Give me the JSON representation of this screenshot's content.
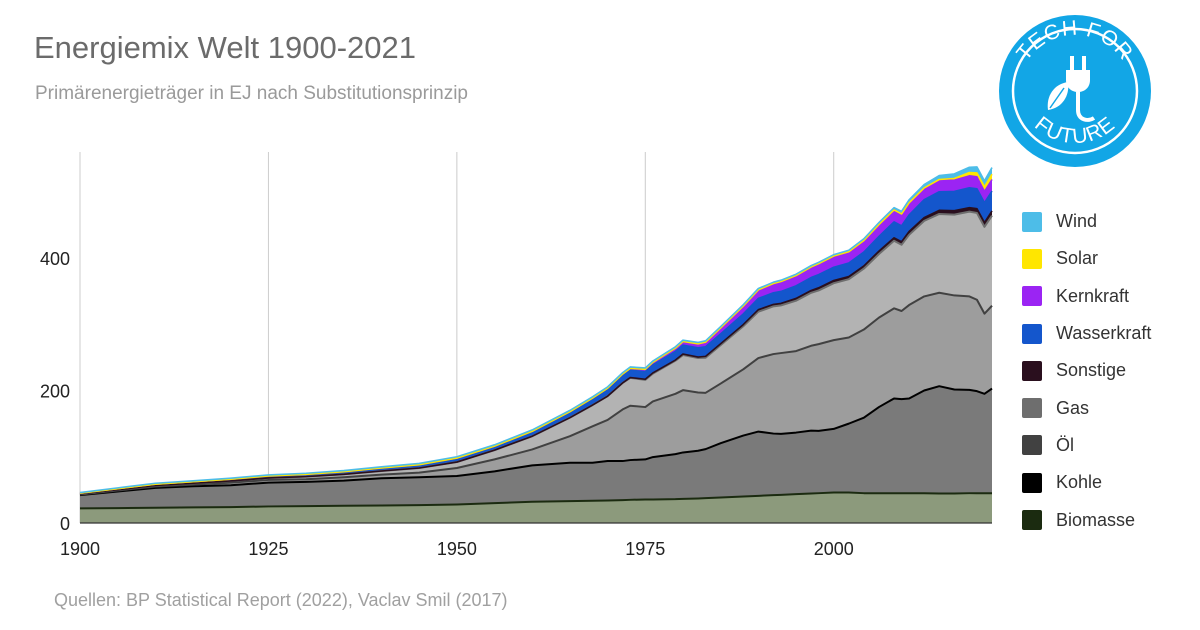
{
  "title": "Energiemix Welt 1900-2021",
  "subtitle": "Primärenergieträger in EJ nach Substitutionsprinzip",
  "source": "Quellen: BP Statistical Report (2022), Vaclav Smil (2017)",
  "logo": {
    "top_text": "TECH FOR",
    "bottom_text": "FUTURE",
    "icon": "plug-leaf-icon",
    "color": "#12a6e6"
  },
  "chart_data": {
    "type": "area",
    "stacked": true,
    "xlim": [
      1900,
      2021
    ],
    "ylim": [
      0,
      560
    ],
    "x_ticks": [
      1900,
      1925,
      1950,
      1975,
      2000
    ],
    "y_ticks": [
      0,
      200,
      400
    ],
    "grid": "vertical",
    "legend_position": "right",
    "x": [
      1900,
      1905,
      1910,
      1915,
      1920,
      1925,
      1930,
      1935,
      1940,
      1945,
      1950,
      1955,
      1960,
      1965,
      1968,
      1970,
      1972,
      1973,
      1975,
      1976,
      1979,
      1980,
      1982,
      1983,
      1985,
      1988,
      1990,
      1992,
      1993,
      1995,
      1997,
      1998,
      2000,
      2002,
      2004,
      2006,
      2008,
      2009,
      2010,
      2012,
      2014,
      2016,
      2018,
      2019,
      2020,
      2021
    ],
    "series": [
      {
        "name": "Biomasse",
        "color": "#1b2b10",
        "values": [
          22,
          22.5,
          23,
          23.5,
          24,
          25,
          25.5,
          26,
          26.5,
          27,
          28,
          30,
          32,
          33,
          33.5,
          34,
          34.5,
          35,
          35.5,
          35.5,
          36,
          36.5,
          37,
          37.5,
          38.5,
          40,
          41,
          42,
          42.5,
          43.5,
          44.5,
          45,
          46,
          46,
          45,
          45,
          45,
          45,
          45,
          45,
          44.5,
          44.5,
          45,
          45,
          45,
          45
        ]
      },
      {
        "name": "Kohle",
        "color": "#000000",
        "values": [
          20,
          25,
          30,
          32,
          33,
          36,
          36.5,
          38,
          41,
          42,
          43,
          48,
          55,
          58,
          57.5,
          59.5,
          59,
          60,
          60.5,
          64,
          68,
          70,
          72,
          74,
          82,
          92,
          97,
          93,
          92,
          93,
          95,
          94,
          96,
          104,
          114,
          130,
          143,
          142,
          143,
          155,
          162,
          157,
          156,
          154,
          150,
          158
        ]
      },
      {
        "name": "Öl",
        "color": "#414141",
        "values": [
          1,
          1.5,
          2,
          2.5,
          4,
          4,
          4,
          5,
          5.5,
          7,
          12,
          18,
          24,
          40,
          55,
          62,
          78,
          82,
          79,
          84,
          91,
          94,
          88,
          85,
          90,
          100,
          111,
          120,
          122,
          123,
          128,
          131,
          134,
          130,
          133,
          135,
          136,
          133,
          141,
          142,
          141,
          142,
          141,
          138,
          121,
          125
        ]
      },
      {
        "name": "Gas",
        "color": "#6e6e6e",
        "values": [
          1,
          1.3,
          1.6,
          2,
          2.5,
          3,
          4,
          4.5,
          5.5,
          7,
          9,
          14,
          20,
          28,
          32,
          36,
          40,
          42,
          41,
          42,
          50,
          53,
          52,
          53,
          58,
          65,
          70,
          72,
          72,
          76,
          80,
          81,
          86,
          88,
          92,
          96,
          102,
          100,
          106,
          114,
          119,
          122,
          128,
          131,
          131,
          136
        ]
      },
      {
        "name": "Sonstige",
        "color": "#2a0f1e",
        "values": [
          0,
          0,
          0,
          0,
          0,
          0,
          0,
          0,
          0,
          0,
          0,
          0,
          0,
          0,
          0,
          0,
          0,
          0.5,
          1,
          1,
          1,
          1.5,
          1.5,
          2,
          2,
          2.5,
          3,
          3,
          3,
          3.5,
          3.5,
          4,
          4,
          4,
          4,
          4.5,
          4.5,
          4.5,
          5,
          5,
          5.5,
          6,
          6,
          6.5,
          6.5,
          7
        ]
      },
      {
        "name": "Wasserkraft",
        "color": "#1456cc",
        "values": [
          1,
          1.5,
          2,
          2.3,
          2.7,
          3,
          3.5,
          4,
          4.5,
          5,
          6,
          6,
          7,
          8,
          9,
          10,
          10.5,
          11,
          11.5,
          12,
          13,
          13.5,
          14,
          14.5,
          15,
          16,
          17,
          17.5,
          18,
          19,
          19.5,
          20,
          20,
          20.5,
          21,
          22,
          24,
          24,
          25,
          27,
          28,
          29,
          30,
          30,
          30,
          30
        ]
      },
      {
        "name": "Kernkraft",
        "color": "#9b24f3",
        "values": [
          0,
          0,
          0,
          0,
          0,
          0,
          0,
          0,
          0,
          0,
          0,
          0,
          0.5,
          1,
          1.5,
          2,
          3,
          3,
          3.5,
          4,
          5,
          5.5,
          6,
          7,
          9,
          12,
          13,
          14,
          15,
          15.5,
          16,
          16.5,
          17,
          17,
          17.5,
          18,
          18,
          18,
          18,
          17,
          17,
          17,
          18,
          18,
          17,
          17.5
        ]
      },
      {
        "name": "Solar",
        "color": "#ffe600",
        "values": [
          0,
          0,
          0,
          0,
          0,
          0,
          0,
          0,
          0,
          0,
          0,
          0,
          0,
          0,
          0,
          0,
          0,
          0,
          0,
          0,
          0,
          0,
          0,
          0,
          0,
          0,
          0,
          0,
          0,
          0,
          0,
          0,
          0,
          0,
          0,
          0,
          0,
          0,
          0.3,
          0.8,
          1.5,
          2.5,
          5,
          6,
          7,
          8
        ]
      },
      {
        "name": "Wind",
        "color": "#4dbde8",
        "values": [
          1,
          1.2,
          1.4,
          1.4,
          1.5,
          1.6,
          1.6,
          1.7,
          1.8,
          1.9,
          2,
          2,
          2,
          2,
          2,
          2,
          2,
          2,
          2,
          2,
          2,
          2,
          2,
          2,
          2,
          2,
          2,
          2,
          2,
          2,
          2,
          2,
          2,
          2.2,
          2.5,
          3,
          3.5,
          4,
          4.5,
          5,
          6,
          7,
          8,
          9,
          9,
          10
        ]
      }
    ]
  }
}
